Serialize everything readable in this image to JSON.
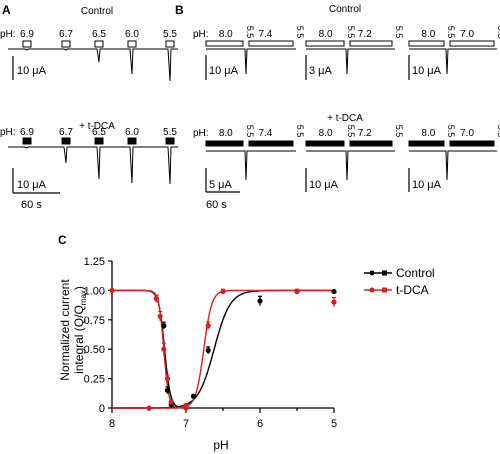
{
  "panel_a": {
    "letter": "A",
    "ph_prefix": "pH:",
    "ph_values": [
      "6.9",
      "6.7",
      "6.5",
      "6.0",
      "5.5"
    ],
    "rows": [
      {
        "condition": "Control",
        "scale_current": "10 μA",
        "time_scale": ""
      },
      {
        "condition": "+ t-DCA",
        "scale_current": "10 μA",
        "time_scale": "60 s"
      }
    ]
  },
  "panel_b": {
    "letter": "B",
    "ph_prefix": "pH:",
    "test_ph": "5.5",
    "rows": [
      {
        "condition": "Control",
        "groups": [
          {
            "conditioning_ph": [
              "8.0",
              "7.4"
            ],
            "scale_current": "10 μA"
          },
          {
            "conditioning_ph": [
              "8.0",
              "7.2"
            ],
            "scale_current": "3 μA"
          },
          {
            "conditioning_ph": [
              "8.0",
              "7.0"
            ],
            "scale_current": "10 μA"
          }
        ],
        "time_scale": ""
      },
      {
        "condition": "+ t-DCA",
        "groups": [
          {
            "conditioning_ph": [
              "8.0",
              "7.4"
            ],
            "scale_current": "5 μA"
          },
          {
            "conditioning_ph": [
              "8.0",
              "7.2"
            ],
            "scale_current": "10 μA"
          },
          {
            "conditioning_ph": [
              "8.0",
              "7.0"
            ],
            "scale_current": "10 μA"
          }
        ],
        "time_scale": "60 s"
      }
    ]
  },
  "chart_data": {
    "panel": "C",
    "type": "scatter",
    "xlabel": "pH",
    "ylabel_main": "Normalized current",
    "ylabel_integral": "integral (Q/Q",
    "ylabel_sub": "max",
    "ylabel_close": ")",
    "xlim": [
      8,
      5
    ],
    "ylim": [
      0,
      1.25
    ],
    "xticks": [
      "8",
      "7",
      "6",
      "5"
    ],
    "yticks": [
      "0",
      "0.25",
      "0.50",
      "0.75",
      "1.00",
      "1.25"
    ],
    "legend_position": "top-right",
    "series": [
      {
        "name": "Control",
        "color": "#000000",
        "marker": "circle",
        "fit_line": "activation and steady-state desensitization fits",
        "desensitization": [
          {
            "x": 7.4,
            "y": 0.93,
            "err": 0.03
          },
          {
            "x": 7.3,
            "y": 0.7,
            "err": 0.03
          },
          {
            "x": 7.25,
            "y": 0.15,
            "err": 0.03
          },
          {
            "x": 7.2,
            "y": 0.03,
            "err": 0.01
          },
          {
            "x": 7.0,
            "y": 0.0,
            "err": 0.01
          }
        ],
        "activation": [
          {
            "x": 7.0,
            "y": 0.02,
            "err": 0.01
          },
          {
            "x": 6.9,
            "y": 0.1,
            "err": 0.01
          },
          {
            "x": 6.7,
            "y": 0.49,
            "err": 0.03
          },
          {
            "x": 6.0,
            "y": 0.91,
            "err": 0.04
          },
          {
            "x": 5.5,
            "y": 0.99,
            "err": 0.01
          },
          {
            "x": 5.0,
            "y": 0.99,
            "err": 0.01
          }
        ]
      },
      {
        "name": "t-DCA",
        "color": "#d42020",
        "marker": "circle",
        "fit_line": "activation and steady-state desensitization fits",
        "desensitization": [
          {
            "x": 8.0,
            "y": 1.0,
            "err": 0.0
          },
          {
            "x": 7.4,
            "y": 0.93,
            "err": 0.03
          },
          {
            "x": 7.35,
            "y": 0.78,
            "err": 0.04
          },
          {
            "x": 7.3,
            "y": 0.5,
            "err": 0.05
          },
          {
            "x": 7.25,
            "y": 0.25,
            "err": 0.03
          },
          {
            "x": 7.2,
            "y": 0.05,
            "err": 0.02
          },
          {
            "x": 7.0,
            "y": 0.0,
            "err": 0.01
          }
        ],
        "activation": [
          {
            "x": 7.5,
            "y": 0.0,
            "err": 0.0
          },
          {
            "x": 7.0,
            "y": 0.02,
            "err": 0.01
          },
          {
            "x": 6.7,
            "y": 0.7,
            "err": 0.03
          },
          {
            "x": 6.5,
            "y": 0.99,
            "err": 0.02
          },
          {
            "x": 5.5,
            "y": 0.99,
            "err": 0.02
          },
          {
            "x": 5.0,
            "y": 0.9,
            "err": 0.04
          }
        ]
      }
    ]
  }
}
